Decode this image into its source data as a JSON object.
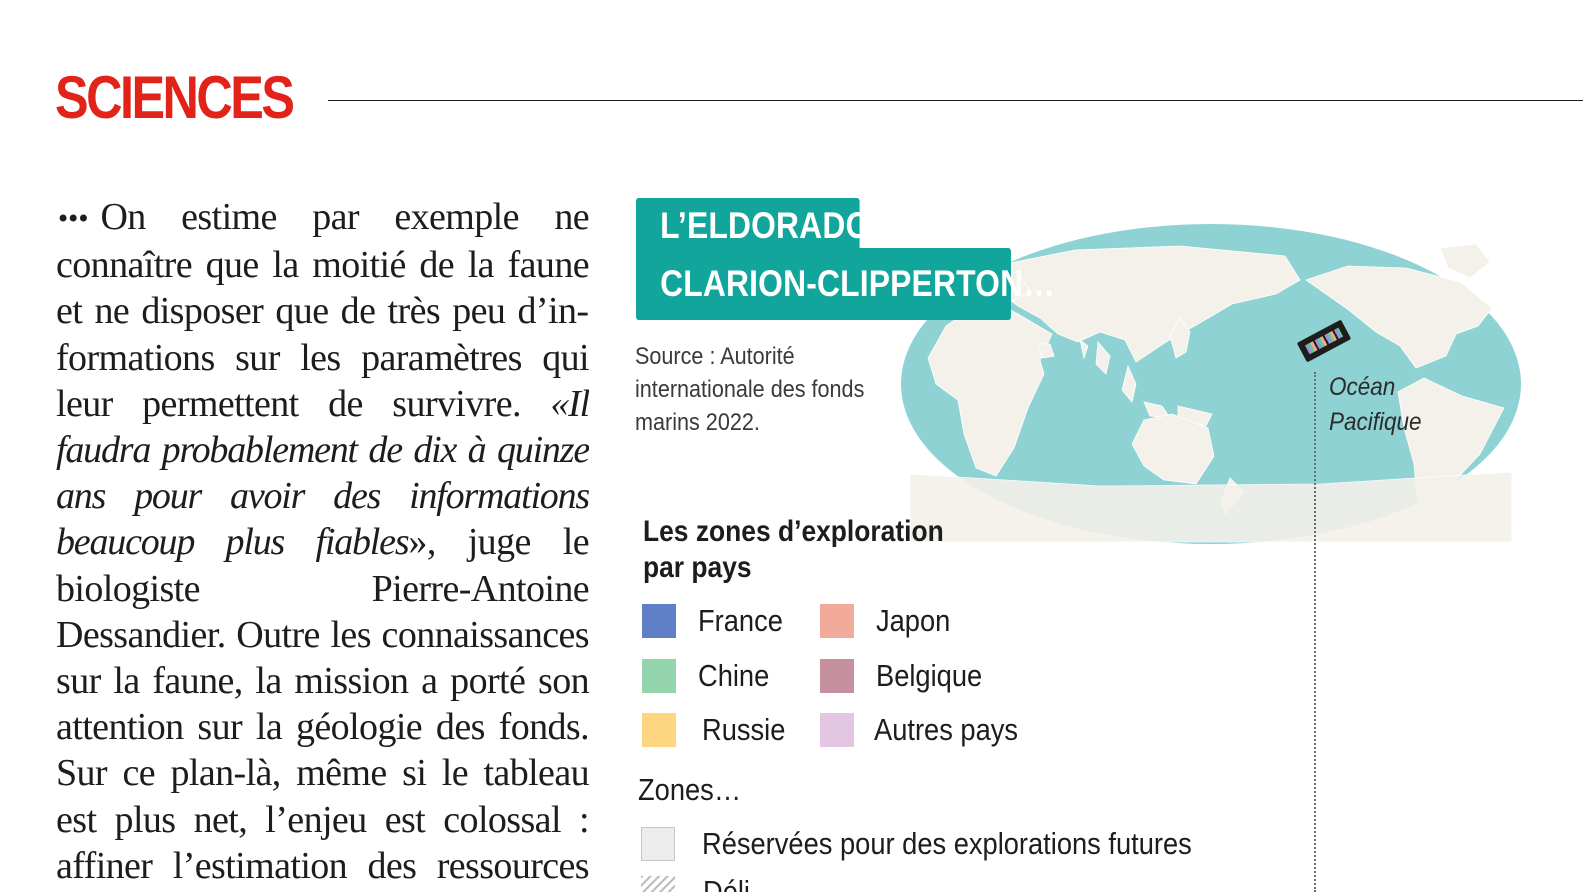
{
  "header": {
    "section_title": "SCIENCES"
  },
  "article": {
    "continuation_marker": "•••",
    "segment_1": "On estime par exemple ne connaître que la moitié de la faune et ne disposer que de très peu d’in­formations sur les paramètres qui leur permettent de survivre. ",
    "quote": "«Il faudra probablement de dix à quinze ans pour avoir des informations beau­coup plus fiables",
    "segment_2": "», juge le biologiste Pierre-Antoine Dessandier. Outre les connaissances sur la faune, la mission a porté son attention sur la géologie des fonds. Sur ce plan-là, même si le tableau est plus net, l’enjeu est colossal : affiner l’esti­mation des ressources minérales"
  },
  "infographic": {
    "title_line_1": "L’ELDORADO",
    "title_line_2": "CLARION-CLIPPERTON…",
    "source": "Source : Autorité internationale des fonds marins 2022.",
    "ocean_label_line_1": "Océan",
    "ocean_label_line_2": "Pacifique",
    "zone_icon": "clarion-clipperton-zone-marker",
    "colors": {
      "title_background": "#11a59b",
      "ocean": "#8ed2d4",
      "land": "#f4f1ea"
    },
    "legend": {
      "title_line_1": "Les zones d’exploration",
      "title_line_2": "par pays",
      "items": [
        {
          "label": "France",
          "color": "#5f7fc7"
        },
        {
          "label": "Japon",
          "color": "#f2ab9a"
        },
        {
          "label": "Chine",
          "color": "#94d4ad"
        },
        {
          "label": "Belgique",
          "color": "#c6909f"
        },
        {
          "label": "Russie",
          "color": "#fed580"
        },
        {
          "label": "Autres pays",
          "color": "#e3c6e1"
        }
      ]
    },
    "zones": {
      "title": "Zones…",
      "reserved_label": "Réservées pour des explorations futures",
      "reserved_color": "#ececec",
      "partially_visible_label": "Déli..."
    }
  }
}
